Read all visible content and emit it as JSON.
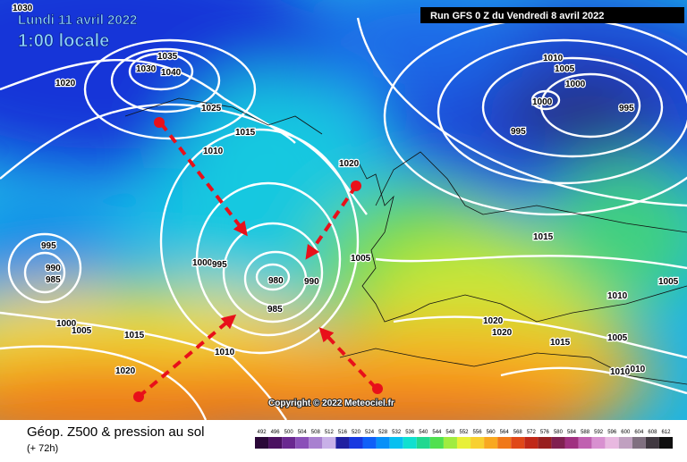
{
  "header": {
    "date": "Lundi 11 avril 2022",
    "time": "1:00 locale",
    "run": "Run GFS 0 Z du Vendredi 8 avril 2022"
  },
  "copyright": "Copyright © 2022 Meteociel.fr",
  "footer": {
    "title": "Géop. Z500 & pression au sol",
    "lead": "(+ 72h)"
  },
  "isobar_labels": [
    1030,
    1035,
    1030,
    1040,
    1020,
    1025,
    1015,
    1010,
    1020,
    995,
    990,
    985,
    1000,
    995,
    980,
    990,
    985,
    1005,
    1000,
    1005,
    1015,
    1010,
    1020,
    1010,
    1005,
    1000,
    1000,
    995,
    995,
    1015,
    1010,
    1005,
    1020,
    1020,
    1015,
    1005,
    1010,
    1010
  ],
  "legend_scale": [
    492,
    496,
    500,
    504,
    508,
    512,
    516,
    520,
    524,
    528,
    532,
    536,
    540,
    544,
    548,
    552,
    556,
    560,
    564,
    568,
    572,
    576,
    580,
    584,
    588,
    592,
    596,
    600,
    604,
    608,
    612
  ]
}
